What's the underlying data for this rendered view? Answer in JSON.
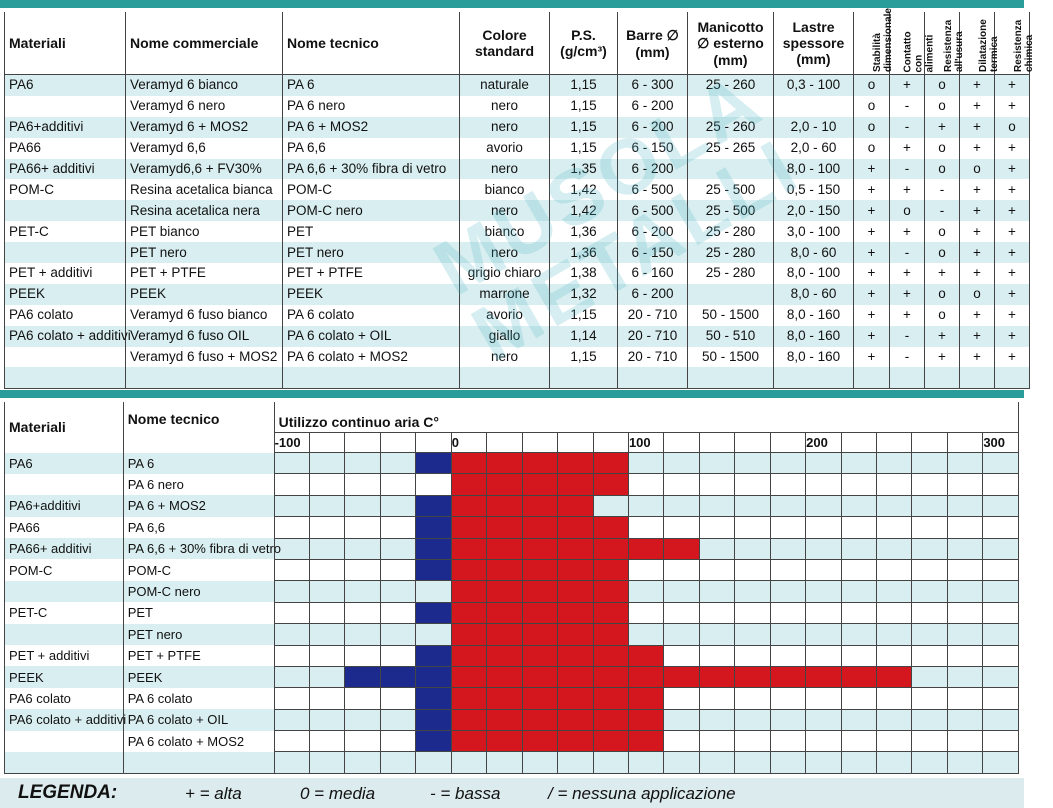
{
  "watermark": "MUSOLA METALLI",
  "table1": {
    "headers": {
      "materiali": "Materiali",
      "nome_commerciale": "Nome commerciale",
      "nome_tecnico": "Nome tecnico",
      "colore": "Colore standard",
      "ps": "P.S. (g/cm³)",
      "barre": "Barre ∅ (mm)",
      "manicotto": "Manicotto ∅ esterno (mm)",
      "lastre": "Lastre spessore (mm)",
      "stabilita": "Stabilità dimensionale",
      "contatto": "Contatto con alimenti",
      "usura": "Resistenza all'usura",
      "dilatazione": "Dilatazione termica",
      "chimica": "Resistenza chimica"
    },
    "rows": [
      {
        "mat": "PA6",
        "comm": "Veramyd 6 bianco",
        "tec": "PA 6",
        "col": "naturale",
        "ps": "1,15",
        "barre": "6 - 300",
        "man": "25 - 260",
        "las": "0,3 - 100",
        "p1": "o",
        "p2": "+",
        "p3": "o",
        "p4": "+",
        "p5": "+"
      },
      {
        "mat": "",
        "comm": "Veramyd 6 nero",
        "tec": "PA 6 nero",
        "col": "nero",
        "ps": "1,15",
        "barre": "6 - 200",
        "man": "",
        "las": "",
        "p1": "o",
        "p2": "-",
        "p3": "o",
        "p4": "+",
        "p5": "+"
      },
      {
        "mat": "PA6+additivi",
        "comm": "Veramyd 6 + MOS2",
        "tec": "PA 6 + MOS2",
        "col": "nero",
        "ps": "1,15",
        "barre": "6 - 200",
        "man": "25 - 260",
        "las": "2,0 - 10",
        "p1": "o",
        "p2": "-",
        "p3": "+",
        "p4": "+",
        "p5": "o"
      },
      {
        "mat": "PA66",
        "comm": "Veramyd 6,6",
        "tec": "PA 6,6",
        "col": "avorio",
        "ps": "1,15",
        "barre": "6 - 150",
        "man": "25 - 265",
        "las": "2,0 - 60",
        "p1": "o",
        "p2": "+",
        "p3": "o",
        "p4": "+",
        "p5": "+"
      },
      {
        "mat": "PA66+ additivi",
        "comm": "Veramyd6,6 + FV30%",
        "tec": "PA 6,6 + 30% fibra di vetro",
        "col": "nero",
        "ps": "1,35",
        "barre": "6 - 200",
        "man": "",
        "las": "8,0 - 100",
        "p1": "+",
        "p2": "-",
        "p3": "o",
        "p4": "o",
        "p5": "+"
      },
      {
        "mat": "POM-C",
        "comm": "Resina acetalica bianca",
        "tec": "POM-C",
        "col": "bianco",
        "ps": "1,42",
        "barre": "6 - 500",
        "man": "25 - 500",
        "las": "0,5 - 150",
        "p1": "+",
        "p2": "+",
        "p3": "-",
        "p4": "+",
        "p5": "+"
      },
      {
        "mat": "",
        "comm": "Resina acetalica nera",
        "tec": "POM-C nero",
        "col": "nero",
        "ps": "1,42",
        "barre": "6 - 500",
        "man": "25 - 500",
        "las": "2,0 - 150",
        "p1": "+",
        "p2": "o",
        "p3": "-",
        "p4": "+",
        "p5": "+"
      },
      {
        "mat": "PET-C",
        "comm": "PET bianco",
        "tec": "PET",
        "col": "bianco",
        "ps": "1,36",
        "barre": "6 - 200",
        "man": "25 - 280",
        "las": "3,0 - 100",
        "p1": "+",
        "p2": "+",
        "p3": "o",
        "p4": "+",
        "p5": "+"
      },
      {
        "mat": "",
        "comm": "PET nero",
        "tec": "PET nero",
        "col": "nero",
        "ps": "1,36",
        "barre": "6 - 150",
        "man": "25 - 280",
        "las": "8,0 - 60",
        "p1": "+",
        "p2": "-",
        "p3": "o",
        "p4": "+",
        "p5": "+"
      },
      {
        "mat": "PET + additivi",
        "comm": "PET + PTFE",
        "tec": "PET + PTFE",
        "col": "grigio chiaro",
        "ps": "1,38",
        "barre": "6 - 160",
        "man": "25 - 280",
        "las": "8,0 - 100",
        "p1": "+",
        "p2": "+",
        "p3": "+",
        "p4": "+",
        "p5": "+"
      },
      {
        "mat": "PEEK",
        "comm": "PEEK",
        "tec": "PEEK",
        "col": "marrone",
        "ps": "1,32",
        "barre": "6 - 200",
        "man": "",
        "las": "8,0 - 60",
        "p1": "+",
        "p2": "+",
        "p3": "o",
        "p4": "o",
        "p5": "+"
      },
      {
        "mat": "PA6 colato",
        "comm": "Veramyd 6 fuso bianco",
        "tec": "PA 6 colato",
        "col": "avorio",
        "ps": "1,15",
        "barre": "20 - 710",
        "man": "50 - 1500",
        "las": "8,0 - 160",
        "p1": "+",
        "p2": "+",
        "p3": "o",
        "p4": "+",
        "p5": "+"
      },
      {
        "mat": "PA6 colato + additivi",
        "comm": "Veramyd 6 fuso OIL",
        "tec": "PA 6 colato + OIL",
        "col": "giallo",
        "ps": "1,14",
        "barre": "20 - 710",
        "man": "50 - 510",
        "las": "8,0 - 160",
        "p1": "+",
        "p2": "-",
        "p3": "+",
        "p4": "+",
        "p5": "+"
      },
      {
        "mat": "",
        "comm": "Veramyd 6 fuso + MOS2",
        "tec": "PA 6 colato + MOS2",
        "col": "nero",
        "ps": "1,15",
        "barre": "20 - 710",
        "man": "50 - 1500",
        "las": "8,0 - 160",
        "p1": "+",
        "p2": "-",
        "p3": "+",
        "p4": "+",
        "p5": "+"
      },
      {
        "mat": "",
        "comm": "",
        "tec": "",
        "col": "",
        "ps": "",
        "barre": "",
        "man": "",
        "las": "",
        "p1": "",
        "p2": "",
        "p3": "",
        "p4": "",
        "p5": ""
      }
    ]
  },
  "table2": {
    "headers": {
      "materiali": "Materiali",
      "nome_tecnico": "Nome tecnico",
      "chart_title": "Utilizzo continuo aria C°"
    },
    "ticks": [
      "-100",
      "0",
      "100",
      "200",
      "300"
    ],
    "rows": [
      {
        "mat": "PA6",
        "tec": "PA 6",
        "min": -20,
        "max": 100
      },
      {
        "mat": "",
        "tec": "PA 6 nero",
        "min": 0,
        "max": 100
      },
      {
        "mat": "PA6+additivi",
        "tec": "PA 6 + MOS2",
        "min": -20,
        "max": 80
      },
      {
        "mat": "PA66",
        "tec": "PA 6,6",
        "min": -20,
        "max": 100
      },
      {
        "mat": "PA66+ additivi",
        "tec": "PA 6,6 + 30% fibra di vetro",
        "min": -20,
        "max": 140
      },
      {
        "mat": "POM-C",
        "tec": "POM-C",
        "min": -20,
        "max": 100
      },
      {
        "mat": "",
        "tec": "POM-C nero",
        "min": 0,
        "max": 100
      },
      {
        "mat": "PET-C",
        "tec": "PET",
        "min": -20,
        "max": 100
      },
      {
        "mat": "",
        "tec": "PET nero",
        "min": 0,
        "max": 100
      },
      {
        "mat": "PET + additivi",
        "tec": "PET + PTFE",
        "min": -20,
        "max": 120
      },
      {
        "mat": "PEEK",
        "tec": "PEEK",
        "min": -60,
        "max": 260
      },
      {
        "mat": "PA6 colato",
        "tec": "PA 6 colato",
        "min": -20,
        "max": 120
      },
      {
        "mat": "PA6 colato + additivi",
        "tec": "PA 6 colato + OIL",
        "min": -20,
        "max": 120
      },
      {
        "mat": "",
        "tec": "PA 6 colato + MOS2",
        "min": -20,
        "max": 120
      },
      {
        "mat": "",
        "tec": "",
        "min": null,
        "max": null
      }
    ]
  },
  "chart_data": {
    "type": "bar",
    "title": "Utilizzo continuo aria C°",
    "xlim": [
      -100,
      300
    ],
    "categories": [
      "PA 6",
      "PA 6 nero",
      "PA 6 + MOS2",
      "PA 6,6",
      "PA 6,6 + 30% fibra di vetro",
      "POM-C",
      "POM-C nero",
      "PET",
      "PET nero",
      "PET + PTFE",
      "PEEK",
      "PA 6 colato",
      "PA 6 colato + OIL",
      "PA 6 colato + MOS2"
    ],
    "series": [
      {
        "values_min": [
          -20,
          0,
          -20,
          -20,
          -20,
          -20,
          0,
          -20,
          0,
          -20,
          -60,
          -20,
          -20,
          -20
        ],
        "values_max": [
          100,
          100,
          80,
          100,
          140,
          100,
          100,
          100,
          100,
          120,
          260,
          120,
          120,
          120
        ]
      }
    ],
    "colors": {
      "below_zero": "#1b2a8c",
      "above_zero": "#d4171e"
    }
  },
  "legend": {
    "title": "LEGENDA:",
    "items": [
      "+ = alta",
      "0 = media",
      "- = bassa",
      "/ = nessuna applicazione"
    ]
  }
}
